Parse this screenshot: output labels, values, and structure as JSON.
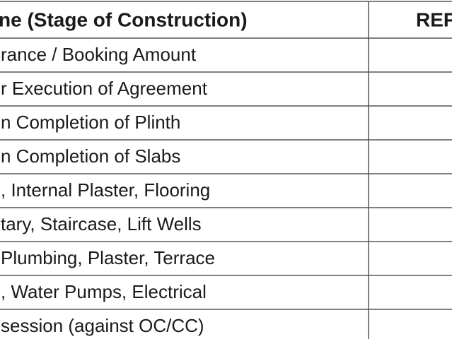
{
  "table": {
    "header": [
      "ne (Stage of Construction)",
      "REF"
    ],
    "rows": [
      "rance / Booking Amount",
      "r Execution of Agreement",
      "n Completion of Plinth",
      "n Completion of Slabs",
      ", Internal Plaster, Flooring",
      "tary, Staircase, Lift Wells",
      "Plumbing, Plaster, Terrace",
      ", Water Pumps, Electrical",
      "session (against OC/CC)"
    ]
  }
}
